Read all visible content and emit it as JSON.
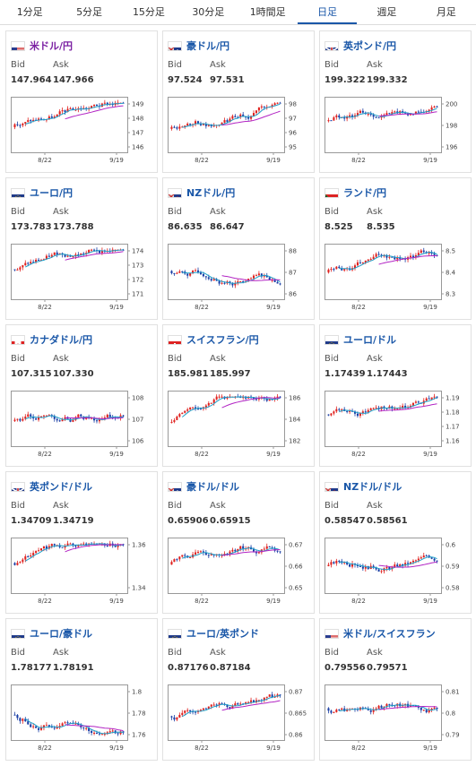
{
  "tabs": [
    "1分足",
    "5分足",
    "15分足",
    "30分足",
    "1時間足",
    "日足",
    "週足",
    "月足"
  ],
  "active_tab": 5,
  "labels": {
    "bid": "Bid",
    "ask": "Ask"
  },
  "cards": [
    {
      "pair": "米ドル/円",
      "flag": "us",
      "pair_color": "#7a1fa2",
      "bid": "147.964",
      "ask": "147.966",
      "ticks": [
        "149",
        "148",
        "147",
        "146"
      ],
      "x_labels": [
        "8/22",
        "9/19"
      ]
    },
    {
      "pair": "豪ドル/円",
      "flag": "au",
      "pair_color": "#1a57a8",
      "bid": "97.524",
      "ask": "97.531",
      "ticks": [
        "98",
        "97",
        "96",
        "95"
      ],
      "x_labels": [
        "8/22",
        "9/19"
      ]
    },
    {
      "pair": "英ポンド/円",
      "flag": "gb",
      "pair_color": "#1a57a8",
      "bid": "199.322",
      "ask": "199.332",
      "ticks": [
        "200",
        "198",
        "196"
      ],
      "x_labels": [
        "8/22",
        "9/19"
      ]
    },
    {
      "pair": "ユーロ/円",
      "flag": "eu",
      "pair_color": "#1a57a8",
      "bid": "173.783",
      "ask": "173.788",
      "ticks": [
        "174",
        "173",
        "172",
        "171"
      ],
      "x_labels": [
        "8/22",
        "9/19"
      ]
    },
    {
      "pair": "NZドル/円",
      "flag": "nz",
      "pair_color": "#1a57a8",
      "bid": "86.635",
      "ask": "86.647",
      "ticks": [
        "88",
        "87",
        "86"
      ],
      "x_labels": [
        "8/22",
        "9/19"
      ]
    },
    {
      "pair": "ランド/円",
      "flag": "za",
      "pair_color": "#1a57a8",
      "bid": "8.525",
      "ask": "8.535",
      "ticks": [
        "8.5",
        "8.4",
        "8.3"
      ],
      "x_labels": [
        "8/22",
        "9/19"
      ]
    },
    {
      "pair": "カナダドル/円",
      "flag": "ca",
      "pair_color": "#1a57a8",
      "bid": "107.315",
      "ask": "107.330",
      "ticks": [
        "108",
        "107",
        "106"
      ],
      "x_labels": [
        "8/22",
        "9/19"
      ]
    },
    {
      "pair": "スイスフラン/円",
      "flag": "ch",
      "pair_color": "#1a57a8",
      "bid": "185.981",
      "ask": "185.997",
      "ticks": [
        "186",
        "184",
        "182"
      ],
      "x_labels": [
        "8/22",
        "9/19"
      ]
    },
    {
      "pair": "ユーロ/ドル",
      "flag": "eu",
      "pair_color": "#1a57a8",
      "bid": "1.17439",
      "ask": "1.17443",
      "ticks": [
        "1.19",
        "1.18",
        "1.17",
        "1.16"
      ],
      "x_labels": [
        "8/22",
        "9/19"
      ]
    },
    {
      "pair": "英ポンド/ドル",
      "flag": "gb",
      "pair_color": "#1a57a8",
      "bid": "1.34709",
      "ask": "1.34719",
      "ticks": [
        "1.36",
        "1.34"
      ],
      "x_labels": [
        "8/22",
        "9/19"
      ]
    },
    {
      "pair": "豪ドル/ドル",
      "flag": "au",
      "pair_color": "#1a57a8",
      "bid": "0.65906",
      "ask": "0.65915",
      "ticks": [
        "0.67",
        "0.66",
        "0.65"
      ],
      "x_labels": [
        "8/22",
        "9/19"
      ]
    },
    {
      "pair": "NZドル/ドル",
      "flag": "nz",
      "pair_color": "#1a57a8",
      "bid": "0.58547",
      "ask": "0.58561",
      "ticks": [
        "0.6",
        "0.59",
        "0.58"
      ],
      "x_labels": [
        "8/22",
        "9/19"
      ]
    },
    {
      "pair": "ユーロ/豪ドル",
      "flag": "eu",
      "pair_color": "#1a57a8",
      "bid": "1.78177",
      "ask": "1.78191",
      "ticks": [
        "1.8",
        "1.78",
        "1.76"
      ],
      "x_labels": [
        "8/22",
        "9/19"
      ]
    },
    {
      "pair": "ユーロ/英ポンド",
      "flag": "eu",
      "pair_color": "#1a57a8",
      "bid": "0.87176",
      "ask": "0.87184",
      "ticks": [
        "0.87",
        "0.865",
        "0.86"
      ],
      "x_labels": [
        "8/22",
        "9/19"
      ]
    },
    {
      "pair": "米ドル/スイスフラン",
      "flag": "us",
      "pair_color": "#1a57a8",
      "bid": "0.79556",
      "ask": "0.79571",
      "ticks": [
        "0.81",
        "0.8",
        "0.79"
      ],
      "x_labels": [
        "8/22",
        "9/19"
      ]
    }
  ],
  "chart_style": {
    "up": "#e0221f",
    "down": "#1b3fa6",
    "ma_short": "#1fa0c8",
    "ma_long": "#b224c4"
  }
}
